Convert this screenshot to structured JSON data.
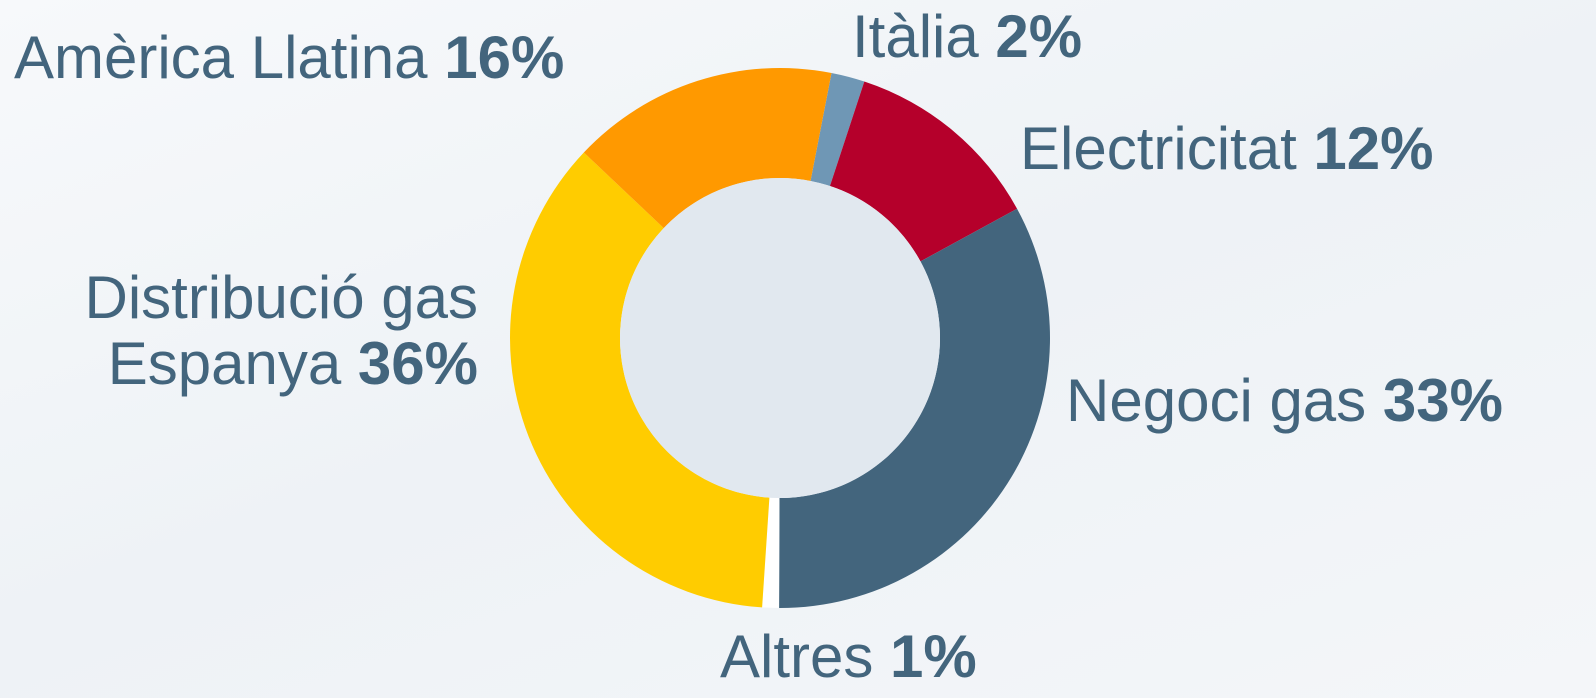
{
  "chart_data": {
    "type": "donut",
    "categories": [
      "Itàlia",
      "Electricitat",
      "Negoci gas",
      "Altres",
      "Distribució gas Espanya",
      "Amèrica Llatina"
    ],
    "values": [
      2,
      12,
      33,
      1,
      36,
      16
    ],
    "value_labels": [
      "2%",
      "12%",
      "33%",
      "1%",
      "36%",
      "16%"
    ],
    "colors": [
      "#6f97b5",
      "#b5002b",
      "#43657d",
      "#ffffff",
      "#ffcc00",
      "#ff9900"
    ]
  }
}
